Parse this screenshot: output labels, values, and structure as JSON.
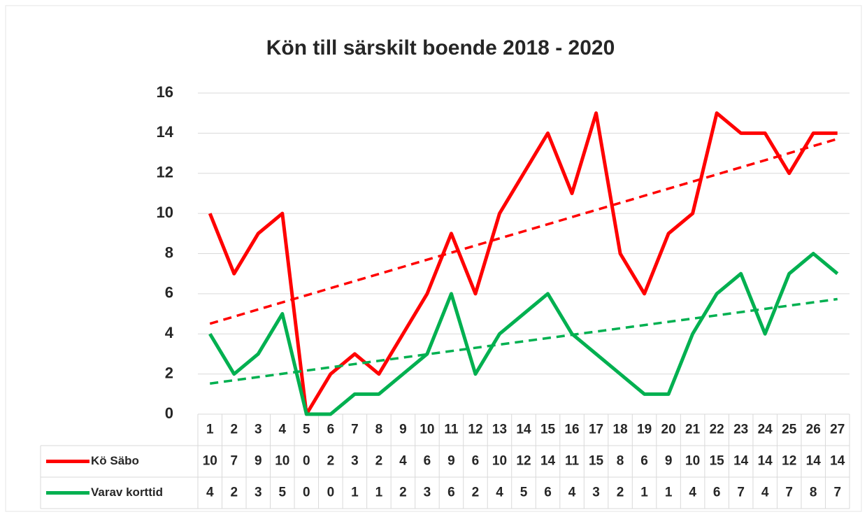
{
  "chart_data": {
    "type": "line",
    "title": "Kön till särskilt boende 2018 - 2020",
    "categories": [
      "1",
      "2",
      "3",
      "4",
      "5",
      "6",
      "7",
      "8",
      "9",
      "10",
      "11",
      "12",
      "13",
      "14",
      "15",
      "16",
      "17",
      "18",
      "19",
      "20",
      "21",
      "22",
      "23",
      "24",
      "25",
      "26",
      "27"
    ],
    "series": [
      {
        "name": "Kö Säbo",
        "color": "#ff0000",
        "trendline": true,
        "values": [
          10,
          7,
          9,
          10,
          0,
          2,
          3,
          2,
          4,
          6,
          9,
          6,
          10,
          12,
          14,
          11,
          15,
          8,
          6,
          9,
          10,
          15,
          14,
          14,
          12,
          14,
          14
        ]
      },
      {
        "name": "Varav korttid",
        "color": "#00b050",
        "trendline": true,
        "values": [
          4,
          2,
          3,
          5,
          0,
          0,
          1,
          1,
          2,
          3,
          6,
          2,
          4,
          5,
          6,
          4,
          3,
          2,
          1,
          1,
          4,
          6,
          7,
          4,
          7,
          8,
          7
        ]
      }
    ],
    "ylim": [
      0,
      16
    ],
    "yticks": [
      0,
      2,
      4,
      6,
      8,
      10,
      12,
      14,
      16
    ],
    "grid": true,
    "data_table": true
  }
}
